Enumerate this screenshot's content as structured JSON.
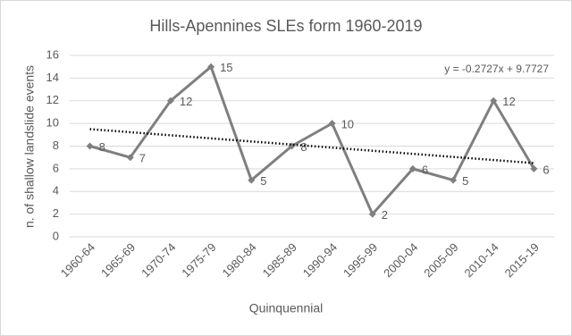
{
  "chart_data": {
    "type": "line",
    "title": "Hills-Apennines SLEs form 1960-2019",
    "x_label": "Quinquennial",
    "y_label": "n. of shallow landslide events",
    "categories": [
      "1960-64",
      "1965-69",
      "1970-74",
      "1975-79",
      "1980-84",
      "1985-89",
      "1990-94",
      "1995-99",
      "2000-04",
      "2005-09",
      "2010-14",
      "2015-19"
    ],
    "values": [
      8,
      7,
      12,
      15,
      5,
      8,
      10,
      2,
      6,
      5,
      12,
      6
    ],
    "color": "#7f7f7f",
    "ylim": [
      0,
      16
    ],
    "yticks": [
      0,
      2,
      4,
      6,
      8,
      10,
      12,
      14,
      16
    ],
    "grid": true,
    "trendline": {
      "slope": -0.2727,
      "intercept": 9.7727,
      "label": "y = -0.2727x + 9.7727",
      "color": "#000000"
    }
  }
}
